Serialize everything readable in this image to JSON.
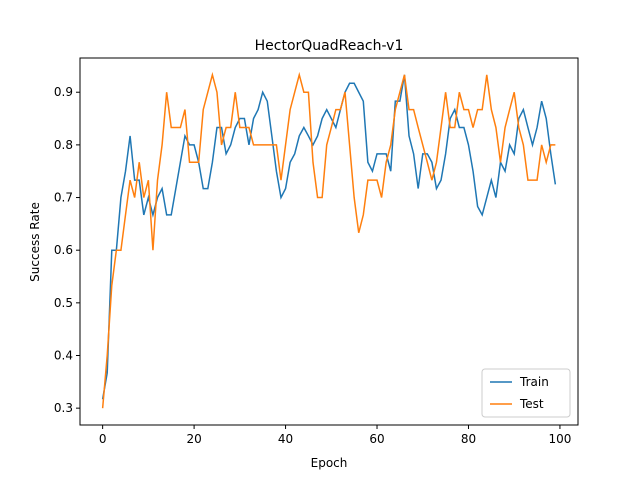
{
  "chart_data": {
    "type": "line",
    "title": "HectorQuadReach-v1",
    "xlabel": "Epoch",
    "ylabel": "Success Rate",
    "x": [
      0,
      1,
      2,
      3,
      4,
      5,
      6,
      7,
      8,
      9,
      10,
      11,
      12,
      13,
      14,
      15,
      16,
      17,
      18,
      19,
      20,
      21,
      22,
      23,
      24,
      25,
      26,
      27,
      28,
      29,
      30,
      31,
      32,
      33,
      34,
      35,
      36,
      37,
      38,
      39,
      40,
      41,
      42,
      43,
      44,
      45,
      46,
      47,
      48,
      49,
      50,
      51,
      52,
      53,
      54,
      55,
      56,
      57,
      58,
      59,
      60,
      61,
      62,
      63,
      64,
      65,
      66,
      67,
      68,
      69,
      70,
      71,
      72,
      73,
      74,
      75,
      76,
      77,
      78,
      79,
      80,
      81,
      82,
      83,
      84,
      85,
      86,
      87,
      88,
      89,
      90,
      91,
      92,
      93,
      94,
      95,
      96,
      97,
      98,
      99
    ],
    "series": [
      {
        "name": "Train",
        "color": "#1f77b4",
        "values": [
          0.317,
          0.367,
          0.6,
          0.6,
          0.7,
          0.75,
          0.817,
          0.733,
          0.733,
          0.667,
          0.7,
          0.667,
          0.7,
          0.717,
          0.667,
          0.667,
          0.717,
          0.767,
          0.817,
          0.8,
          0.8,
          0.767,
          0.717,
          0.717,
          0.767,
          0.833,
          0.833,
          0.783,
          0.8,
          0.833,
          0.85,
          0.85,
          0.8,
          0.85,
          0.867,
          0.9,
          0.883,
          0.817,
          0.75,
          0.7,
          0.717,
          0.767,
          0.783,
          0.817,
          0.833,
          0.817,
          0.8,
          0.817,
          0.85,
          0.867,
          0.85,
          0.833,
          0.867,
          0.9,
          0.917,
          0.917,
          0.9,
          0.883,
          0.767,
          0.75,
          0.783,
          0.783,
          0.783,
          0.75,
          0.883,
          0.883,
          0.933,
          0.817,
          0.783,
          0.717,
          0.783,
          0.783,
          0.767,
          0.717,
          0.733,
          0.783,
          0.85,
          0.867,
          0.833,
          0.833,
          0.8,
          0.75,
          0.683,
          0.667,
          0.7,
          0.733,
          0.7,
          0.767,
          0.75,
          0.8,
          0.783,
          0.85,
          0.867,
          0.833,
          0.8,
          0.833,
          0.883,
          0.85,
          0.783,
          0.725
        ]
      },
      {
        "name": "Test",
        "color": "#ff7f0e",
        "values": [
          0.3,
          0.4,
          0.533,
          0.6,
          0.6,
          0.667,
          0.733,
          0.7,
          0.767,
          0.7,
          0.733,
          0.6,
          0.733,
          0.8,
          0.9,
          0.833,
          0.833,
          0.833,
          0.867,
          0.767,
          0.767,
          0.767,
          0.867,
          0.9,
          0.933,
          0.9,
          0.8,
          0.833,
          0.833,
          0.9,
          0.833,
          0.833,
          0.833,
          0.8,
          0.8,
          0.8,
          0.8,
          0.8,
          0.8,
          0.733,
          0.8,
          0.867,
          0.9,
          0.933,
          0.9,
          0.9,
          0.767,
          0.7,
          0.7,
          0.8,
          0.833,
          0.867,
          0.867,
          0.9,
          0.8,
          0.7,
          0.633,
          0.667,
          0.733,
          0.733,
          0.733,
          0.7,
          0.767,
          0.8,
          0.867,
          0.9,
          0.933,
          0.867,
          0.867,
          0.833,
          0.8,
          0.767,
          0.733,
          0.767,
          0.833,
          0.9,
          0.833,
          0.833,
          0.9,
          0.867,
          0.867,
          0.833,
          0.867,
          0.867,
          0.933,
          0.867,
          0.833,
          0.767,
          0.833,
          0.867,
          0.9,
          0.833,
          0.8,
          0.733,
          0.733,
          0.733,
          0.8,
          0.767,
          0.8,
          0.8
        ]
      }
    ],
    "xlim": [
      -4.95,
      103.95
    ],
    "ylim": [
      0.268,
      0.965
    ],
    "xticks": [
      0,
      20,
      40,
      60,
      80,
      100
    ],
    "yticks": [
      0.3,
      0.4,
      0.5,
      0.6,
      0.7,
      0.8,
      0.9
    ],
    "legend": "lower right"
  }
}
